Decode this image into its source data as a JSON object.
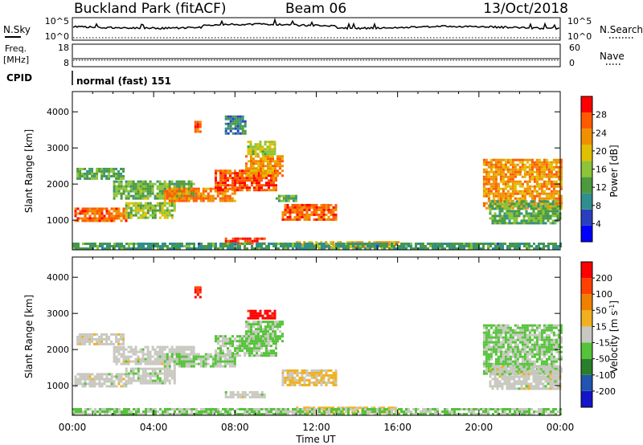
{
  "header": {
    "station": "Buckland Park (fitACF)",
    "beam": "Beam 06",
    "date": "13/Oct/2018"
  },
  "noise_panel": {
    "left_label": "N.Sky",
    "left_ticks": [
      "10^5",
      "10^0"
    ],
    "right_label": "N.Search",
    "right_ticks": [
      "10^5",
      "10^0"
    ]
  },
  "freq_panel": {
    "left_label_1": "Freq.",
    "left_label_2": "[MHz]",
    "left_ticks": [
      "18",
      "8"
    ],
    "right_label": "Nave",
    "right_ticks": [
      "60",
      "0"
    ]
  },
  "cpid_panel": {
    "label": "CPID",
    "mode_text": "normal (fast) 151"
  },
  "colors": {
    "power_scale": [
      "#0000ff",
      "#2a3fc0",
      "#2f8f8f",
      "#4c9a3c",
      "#8cc43a",
      "#e0c000",
      "#f09000",
      "#ff5a00",
      "#ff0000"
    ],
    "velocity_scale": [
      "#1414c8",
      "#2255b0",
      "#2a7f2a",
      "#55c33a",
      "#c8c8c0",
      "#f0b020",
      "#f08000",
      "#ff4000",
      "#ff0000"
    ]
  },
  "chart_data": [
    {
      "type": "heatmap",
      "panel": "power",
      "xlabel": "Time UT",
      "ylabel": "Slant Range [km]",
      "x_ticks": [
        "00:00",
        "04:00",
        "08:00",
        "12:00",
        "16:00",
        "20:00",
        "00:00"
      ],
      "y_ticks": [
        1000,
        2000,
        3000,
        4000
      ],
      "xlim_hours": [
        0,
        24
      ],
      "ylim_km": [
        180,
        4560
      ],
      "colorbar_label": "Power [dB]",
      "colorbar_ticks": [
        4,
        8,
        12,
        16,
        20,
        24,
        28
      ],
      "colorbar_range": [
        0,
        32
      ],
      "echo_bands": [
        {
          "t0": 0.1,
          "t1": 2.6,
          "r0": 1000,
          "r1": 1350,
          "value": 26
        },
        {
          "t0": 2.6,
          "t1": 5.0,
          "r0": 1050,
          "r1": 1500,
          "value": 16
        },
        {
          "t0": 0.2,
          "t1": 2.5,
          "r0": 2150,
          "r1": 2450,
          "value": 13
        },
        {
          "t0": 2.0,
          "t1": 6.0,
          "r0": 1600,
          "r1": 2100,
          "value": 14
        },
        {
          "t0": 4.5,
          "t1": 8.0,
          "r0": 1550,
          "r1": 1900,
          "value": 24
        },
        {
          "t0": 7.0,
          "t1": 10.0,
          "r0": 1800,
          "r1": 2400,
          "value": 27
        },
        {
          "t0": 8.5,
          "t1": 10.3,
          "r0": 2200,
          "r1": 2800,
          "value": 23
        },
        {
          "t0": 8.6,
          "t1": 10.0,
          "r0": 2800,
          "r1": 3200,
          "value": 17
        },
        {
          "t0": 10.3,
          "t1": 13.0,
          "r0": 1000,
          "r1": 1450,
          "value": 26
        },
        {
          "t0": 10.0,
          "t1": 11.0,
          "r0": 1550,
          "r1": 1700,
          "value": 13
        },
        {
          "t0": 7.5,
          "t1": 9.5,
          "r0": 380,
          "r1": 520,
          "value": 29
        },
        {
          "t0": 11.0,
          "t1": 16.0,
          "r0": 230,
          "r1": 420,
          "value": 22
        },
        {
          "t0": 0.0,
          "t1": 24.0,
          "r0": 190,
          "r1": 380,
          "value": 11
        },
        {
          "t0": 20.2,
          "t1": 24.0,
          "r0": 1350,
          "r1": 2700,
          "value": 23
        },
        {
          "t0": 20.5,
          "t1": 24.0,
          "r0": 900,
          "r1": 1550,
          "value": 13
        },
        {
          "t0": 6.0,
          "t1": 6.3,
          "r0": 3450,
          "r1": 3750,
          "value": 27
        },
        {
          "t0": 7.5,
          "t1": 8.5,
          "r0": 3400,
          "r1": 3900,
          "value": 9
        }
      ]
    },
    {
      "type": "heatmap",
      "panel": "velocity",
      "xlabel": "Time UT",
      "ylabel": "Slant Range [km]",
      "x_ticks": [
        "00:00",
        "04:00",
        "08:00",
        "12:00",
        "16:00",
        "20:00",
        "00:00"
      ],
      "y_ticks": [
        1000,
        2000,
        3000,
        4000
      ],
      "xlim_hours": [
        0,
        24
      ],
      "ylim_km": [
        180,
        4560
      ],
      "colorbar_label": "Velocity [m s^-1]",
      "colorbar_ticks": [
        "200",
        "100",
        "50",
        "15",
        "-15",
        "-50",
        "-100",
        "-200"
      ],
      "colorbar_range": [
        -250,
        250
      ],
      "echo_bands": [
        {
          "t0": 0.1,
          "t1": 2.6,
          "r0": 1000,
          "r1": 1350,
          "value": 0
        },
        {
          "t0": 2.6,
          "t1": 5.0,
          "r0": 1050,
          "r1": 1500,
          "value": -5
        },
        {
          "t0": 0.2,
          "t1": 2.5,
          "r0": 2150,
          "r1": 2450,
          "value": 5
        },
        {
          "t0": 2.0,
          "t1": 6.0,
          "r0": 1600,
          "r1": 2100,
          "value": 0
        },
        {
          "t0": 4.5,
          "t1": 8.0,
          "r0": 1550,
          "r1": 1900,
          "value": -25
        },
        {
          "t0": 7.0,
          "t1": 10.0,
          "r0": 1800,
          "r1": 2400,
          "value": -30
        },
        {
          "t0": 8.5,
          "t1": 10.3,
          "r0": 2200,
          "r1": 2800,
          "value": -40
        },
        {
          "t0": 8.6,
          "t1": 10.0,
          "r0": 2850,
          "r1": 3100,
          "value": 220
        },
        {
          "t0": 10.3,
          "t1": 13.0,
          "r0": 1000,
          "r1": 1450,
          "value": 40
        },
        {
          "t0": 7.5,
          "t1": 9.5,
          "r0": 700,
          "r1": 850,
          "value": 0
        },
        {
          "t0": 11.0,
          "t1": 16.0,
          "r0": 230,
          "r1": 420,
          "value": 45
        },
        {
          "t0": 0.0,
          "t1": 24.0,
          "r0": 190,
          "r1": 380,
          "value": -30
        },
        {
          "t0": 20.2,
          "t1": 24.0,
          "r0": 1350,
          "r1": 2700,
          "value": -35
        },
        {
          "t0": 20.5,
          "t1": 24.0,
          "r0": 900,
          "r1": 1550,
          "value": 0
        },
        {
          "t0": 6.0,
          "t1": 6.3,
          "r0": 3450,
          "r1": 3750,
          "value": 200
        }
      ]
    }
  ]
}
